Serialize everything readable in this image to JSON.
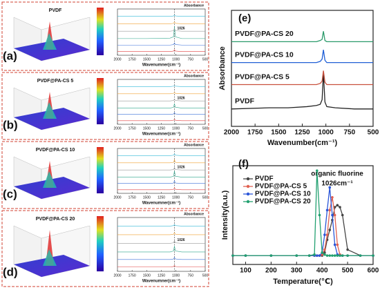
{
  "chart_data": [
    {
      "type": "line",
      "panel_label": "(a)",
      "title": "PVDF",
      "ylabel": "Absorbance",
      "xlabel": "Wavenumner(cm⁻¹)",
      "annotations": [
        {
          "text": "1026",
          "x": 1026
        }
      ],
      "xlim": [
        2000,
        500
      ],
      "xticks": [
        2000,
        1750,
        1500,
        1250,
        1000,
        750,
        500
      ],
      "ylim": [
        0,
        1
      ],
      "x": [
        2000,
        1500,
        1100,
        1040,
        1026,
        1010,
        900,
        500
      ],
      "series": [
        {
          "color": "#e03c3c",
          "values": [
            0.08,
            0.08,
            0.08,
            0.09,
            0.12,
            0.09,
            0.08,
            0.08
          ]
        },
        {
          "color": "#3a6fd8",
          "values": [
            0.22,
            0.22,
            0.22,
            0.23,
            0.27,
            0.23,
            0.22,
            0.22
          ]
        },
        {
          "color": "#2aa58a",
          "values": [
            0.36,
            0.36,
            0.37,
            0.4,
            0.62,
            0.4,
            0.36,
            0.36
          ]
        },
        {
          "color": "#999999",
          "values": [
            0.52,
            0.52,
            0.52,
            0.53,
            0.58,
            0.53,
            0.52,
            0.52
          ]
        },
        {
          "color": "#f0a030",
          "values": [
            0.68,
            0.68,
            0.68,
            0.69,
            0.72,
            0.69,
            0.68,
            0.68
          ]
        },
        {
          "color": "#30b8d8",
          "values": [
            0.84,
            0.84,
            0.84,
            0.85,
            0.87,
            0.85,
            0.84,
            0.84
          ]
        }
      ]
    },
    {
      "type": "line",
      "panel_label": "(b)",
      "title": "PVDF@PA-CS 5",
      "ylabel": "Absorbance",
      "xlabel": "Wavenumner(cm⁻¹)",
      "annotations": [
        {
          "text": "1026",
          "x": 1026
        }
      ],
      "xlim": [
        2000,
        500
      ],
      "xticks": [
        2000,
        1750,
        1500,
        1250,
        1000,
        750,
        500
      ],
      "ylim": [
        0,
        1
      ],
      "x": [
        2000,
        1500,
        1100,
        1040,
        1026,
        1010,
        900,
        500
      ],
      "series": [
        {
          "color": "#e03c3c",
          "values": [
            0.08,
            0.08,
            0.08,
            0.09,
            0.11,
            0.09,
            0.08,
            0.08
          ]
        },
        {
          "color": "#3a6fd8",
          "values": [
            0.22,
            0.22,
            0.22,
            0.23,
            0.26,
            0.23,
            0.22,
            0.22
          ]
        },
        {
          "color": "#2aa58a",
          "values": [
            0.36,
            0.36,
            0.36,
            0.38,
            0.46,
            0.38,
            0.36,
            0.36
          ]
        },
        {
          "color": "#999999",
          "values": [
            0.52,
            0.52,
            0.52,
            0.53,
            0.56,
            0.53,
            0.52,
            0.52
          ]
        },
        {
          "color": "#f0a030",
          "values": [
            0.68,
            0.68,
            0.68,
            0.69,
            0.71,
            0.69,
            0.68,
            0.68
          ]
        },
        {
          "color": "#30b8d8",
          "values": [
            0.84,
            0.84,
            0.84,
            0.85,
            0.86,
            0.85,
            0.84,
            0.84
          ]
        }
      ]
    },
    {
      "type": "line",
      "panel_label": "(c)",
      "title": "PVDF@PA-CS 10",
      "ylabel": "Absorbance",
      "xlabel": "Wavenumner(cm⁻¹)",
      "annotations": [
        {
          "text": "1026",
          "x": 1026
        }
      ],
      "xlim": [
        2000,
        500
      ],
      "xticks": [
        2000,
        1750,
        1500,
        1250,
        1000,
        750,
        500
      ],
      "ylim": [
        0,
        1
      ],
      "x": [
        2000,
        1500,
        1100,
        1040,
        1026,
        1010,
        900,
        500
      ],
      "series": [
        {
          "color": "#e03c3c",
          "values": [
            0.08,
            0.08,
            0.08,
            0.09,
            0.12,
            0.09,
            0.08,
            0.08
          ]
        },
        {
          "color": "#3a6fd8",
          "values": [
            0.22,
            0.22,
            0.22,
            0.23,
            0.28,
            0.23,
            0.22,
            0.22
          ]
        },
        {
          "color": "#2aa58a",
          "values": [
            0.36,
            0.36,
            0.36,
            0.38,
            0.5,
            0.38,
            0.36,
            0.36
          ]
        },
        {
          "color": "#999999",
          "values": [
            0.52,
            0.52,
            0.52,
            0.53,
            0.58,
            0.53,
            0.52,
            0.52
          ]
        },
        {
          "color": "#f0a030",
          "values": [
            0.68,
            0.68,
            0.68,
            0.69,
            0.75,
            0.69,
            0.68,
            0.68
          ]
        },
        {
          "color": "#30b8d8",
          "values": [
            0.84,
            0.84,
            0.84,
            0.85,
            0.88,
            0.85,
            0.84,
            0.84
          ]
        }
      ]
    },
    {
      "type": "line",
      "panel_label": "(d)",
      "title": "PVDF@PA-CS 20",
      "ylabel": "Absorbance",
      "xlabel": "Wavenumner(cm⁻¹)",
      "annotations": [
        {
          "text": "1026",
          "x": 1026
        }
      ],
      "xlim": [
        2000,
        500
      ],
      "xticks": [
        2000,
        1750,
        1500,
        1250,
        1000,
        750,
        500
      ],
      "ylim": [
        0,
        1
      ],
      "x": [
        2000,
        1500,
        1100,
        1040,
        1026,
        1010,
        900,
        500
      ],
      "series": [
        {
          "color": "#e03c3c",
          "values": [
            0.08,
            0.08,
            0.08,
            0.09,
            0.11,
            0.09,
            0.08,
            0.08
          ]
        },
        {
          "color": "#3a6fd8",
          "values": [
            0.22,
            0.22,
            0.22,
            0.23,
            0.26,
            0.23,
            0.22,
            0.22
          ]
        },
        {
          "color": "#2aa58a",
          "values": [
            0.36,
            0.36,
            0.36,
            0.38,
            0.47,
            0.38,
            0.36,
            0.36
          ]
        },
        {
          "color": "#999999",
          "values": [
            0.52,
            0.52,
            0.52,
            0.53,
            0.57,
            0.53,
            0.52,
            0.52
          ]
        },
        {
          "color": "#f0a030",
          "values": [
            0.68,
            0.68,
            0.68,
            0.69,
            0.72,
            0.69,
            0.68,
            0.68
          ]
        },
        {
          "color": "#30b8d8",
          "values": [
            0.84,
            0.84,
            0.84,
            0.85,
            0.87,
            0.85,
            0.84,
            0.84
          ]
        }
      ]
    },
    {
      "type": "line",
      "panel_label": "(e)",
      "ylabel": "Absorbance",
      "xlabel": "Wavenumber(cm⁻¹)",
      "xlim": [
        2000,
        500
      ],
      "xticks": [
        2000,
        1750,
        1500,
        1250,
        1000,
        750,
        500
      ],
      "ylim": [
        0,
        1
      ],
      "x": [
        2000,
        1600,
        1400,
        1200,
        1100,
        1060,
        1040,
        1026,
        1010,
        990,
        900,
        700,
        500
      ],
      "series": [
        {
          "name": "PVDF",
          "color": "#222222",
          "values": [
            0.15,
            0.16,
            0.16,
            0.17,
            0.18,
            0.19,
            0.23,
            0.46,
            0.21,
            0.17,
            0.16,
            0.15,
            0.15
          ]
        },
        {
          "name": "PVDF@PA-CS 5",
          "color": "#c8503c",
          "values": [
            0.36,
            0.36,
            0.36,
            0.36,
            0.36,
            0.37,
            0.39,
            0.48,
            0.38,
            0.36,
            0.36,
            0.36,
            0.36
          ]
        },
        {
          "name": "PVDF@PA-CS 10",
          "color": "#1f5fd6",
          "values": [
            0.55,
            0.55,
            0.55,
            0.55,
            0.55,
            0.56,
            0.58,
            0.66,
            0.57,
            0.55,
            0.55,
            0.55,
            0.55
          ]
        },
        {
          "name": "PVDF@PA-CS 20",
          "color": "#2a9a6a",
          "values": [
            0.73,
            0.73,
            0.73,
            0.73,
            0.73,
            0.74,
            0.75,
            0.82,
            0.74,
            0.73,
            0.73,
            0.73,
            0.73
          ]
        }
      ]
    },
    {
      "type": "line",
      "panel_label": "(f)",
      "ylabel": "Intensity(a.u.)",
      "xlabel": "Temperature(℃)",
      "annotations": [
        "organic fluorine",
        "1026cm⁻¹"
      ],
      "markers": true,
      "xlim": [
        50,
        600
      ],
      "xticks": [
        100,
        200,
        300,
        400,
        500,
        600
      ],
      "ylim": [
        0,
        1
      ],
      "x": [
        50,
        100,
        200,
        300,
        350,
        370,
        380,
        390,
        400,
        410,
        420,
        430,
        440,
        450,
        460,
        470,
        480,
        500,
        550,
        600
      ],
      "series": [
        {
          "name": "PVDF",
          "color": "#444444",
          "values": [
            0.09,
            0.09,
            0.09,
            0.09,
            0.09,
            0.09,
            0.09,
            0.09,
            0.09,
            0.12,
            0.25,
            0.35,
            0.45,
            0.58,
            0.6,
            0.58,
            0.5,
            0.15,
            0.09,
            0.09
          ]
        },
        {
          "name": "PVDF@PA-CS 5",
          "color": "#e06050",
          "values": [
            0.09,
            0.09,
            0.09,
            0.09,
            0.09,
            0.09,
            0.09,
            0.09,
            0.1,
            0.15,
            0.3,
            0.55,
            0.68,
            0.5,
            0.2,
            0.1,
            0.09,
            0.09,
            0.09,
            0.09
          ]
        },
        {
          "name": "PVDF@PA-CS 10",
          "color": "#2a55d8",
          "values": [
            0.09,
            0.09,
            0.09,
            0.09,
            0.09,
            0.09,
            0.09,
            0.09,
            0.12,
            0.3,
            0.55,
            0.78,
            0.5,
            0.2,
            0.1,
            0.09,
            0.09,
            0.09,
            0.09,
            0.09
          ]
        },
        {
          "name": "PVDF@PA-CS 20",
          "color": "#22a070",
          "values": [
            0.09,
            0.09,
            0.09,
            0.09,
            0.09,
            0.1,
            0.95,
            0.5,
            0.12,
            0.1,
            0.09,
            0.09,
            0.09,
            0.09,
            0.09,
            0.09,
            0.09,
            0.09,
            0.09,
            0.09
          ]
        }
      ]
    }
  ]
}
